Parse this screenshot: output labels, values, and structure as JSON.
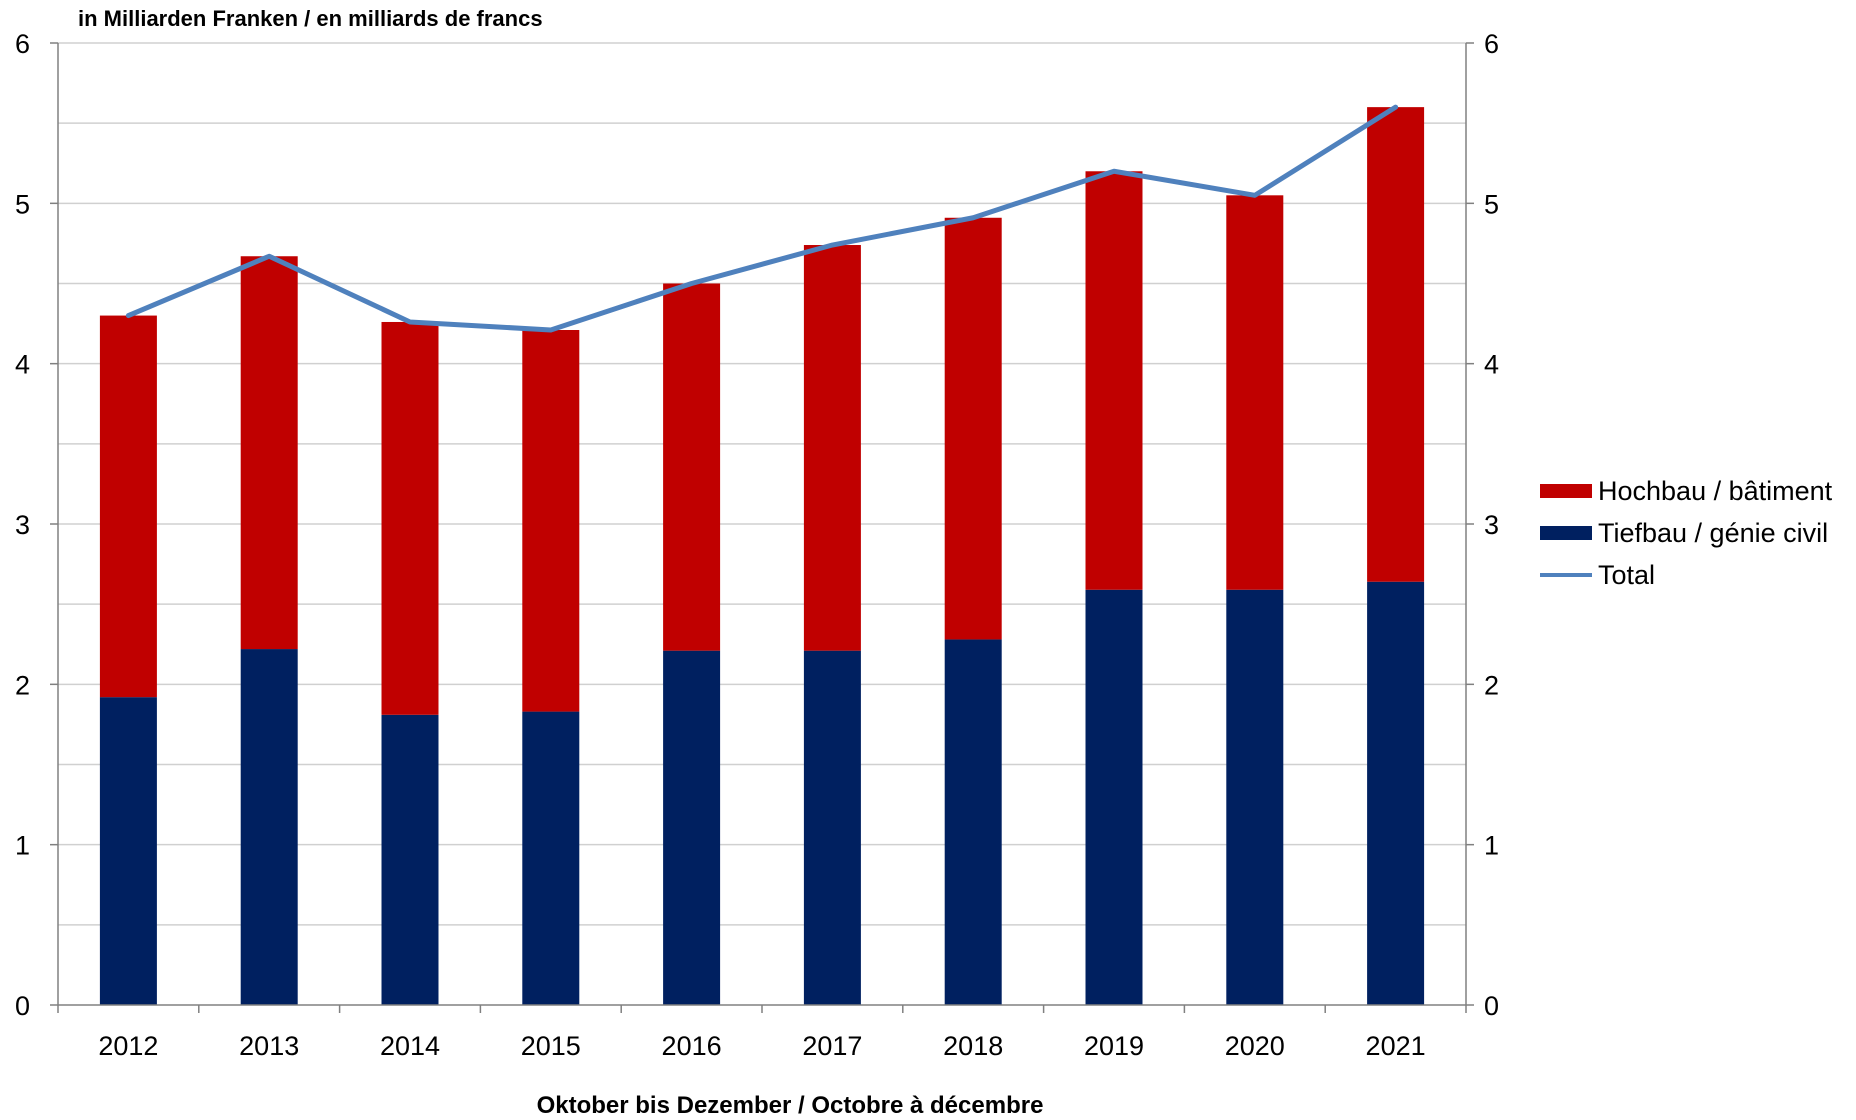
{
  "chart_data": {
    "type": "bar",
    "stacked": true,
    "unit_label": "in Milliarden Franken / en milliards de francs",
    "xlabel": "Oktober bis Dezember / Octobre à décembre",
    "categories": [
      "2012",
      "2013",
      "2014",
      "2015",
      "2016",
      "2017",
      "2018",
      "2019",
      "2020",
      "2021"
    ],
    "ylim": [
      0,
      6
    ],
    "y_ticks": [
      "0",
      "1",
      "2",
      "3",
      "4",
      "5",
      "6"
    ],
    "y2_ticks": [
      "0",
      "1",
      "2",
      "3",
      "4",
      "5",
      "6"
    ],
    "grid": true,
    "legend_position": "right",
    "series": [
      {
        "name": "Tiefbau / génie civil",
        "type": "bar",
        "color": "#002060",
        "values": [
          1.92,
          2.22,
          1.81,
          1.83,
          2.21,
          2.21,
          2.28,
          2.59,
          2.59,
          2.64
        ]
      },
      {
        "name": "Hochbau / bâtiment",
        "type": "bar",
        "color": "#C00000",
        "values": [
          2.38,
          2.45,
          2.45,
          2.38,
          2.29,
          2.53,
          2.63,
          2.61,
          2.46,
          2.96
        ]
      },
      {
        "name": "Total",
        "type": "line",
        "color": "#4F81BD",
        "values": [
          4.3,
          4.67,
          4.26,
          4.21,
          4.5,
          4.74,
          4.91,
          5.2,
          5.05,
          5.6
        ]
      }
    ],
    "legend": [
      "Hochbau / bâtiment",
      "Tiefbau / génie civil",
      "Total"
    ]
  }
}
